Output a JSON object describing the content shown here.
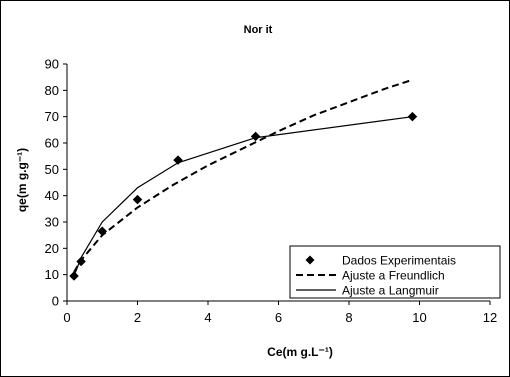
{
  "chart_data": {
    "type": "scatter",
    "title": "Nor it",
    "xlabel": "Ce(m g.L⁻¹)",
    "ylabel": "qe(m g.g⁻¹)",
    "xlim": [
      0,
      12
    ],
    "ylim": [
      0,
      90
    ],
    "xticks": [
      0,
      2,
      4,
      6,
      8,
      10,
      12
    ],
    "yticks": [
      0,
      10,
      20,
      30,
      40,
      50,
      60,
      70,
      80,
      90
    ],
    "grid": false,
    "legend_position": "bottom-right",
    "series": [
      {
        "name": "Dados Experimentais",
        "style": "marker-diamond",
        "color": "#000000",
        "x": [
          0.2,
          0.4,
          1.0,
          2.0,
          3.15,
          5.35,
          9.8
        ],
        "y": [
          9.5,
          15,
          26.5,
          38.5,
          53.5,
          62.5,
          70
        ]
      },
      {
        "name": "Ajuste a Freundlich",
        "style": "dashed",
        "color": "#000000",
        "x": [
          0.2,
          0.4,
          1.0,
          2.0,
          3.0,
          4.0,
          5.0,
          6.0,
          7.0,
          8.0,
          9.0,
          9.8
        ],
        "y": [
          11,
          15.5,
          25,
          35.5,
          44,
          51.5,
          58,
          64.5,
          70.5,
          75.5,
          80.5,
          84
        ]
      },
      {
        "name": "Ajuste a Langmuir",
        "style": "solid",
        "color": "#000000",
        "x": [
          0.2,
          0.4,
          1.0,
          2.0,
          3.15,
          5.35,
          9.8
        ],
        "y": [
          9.5,
          16.5,
          30,
          43,
          52.5,
          62,
          70
        ]
      }
    ]
  }
}
